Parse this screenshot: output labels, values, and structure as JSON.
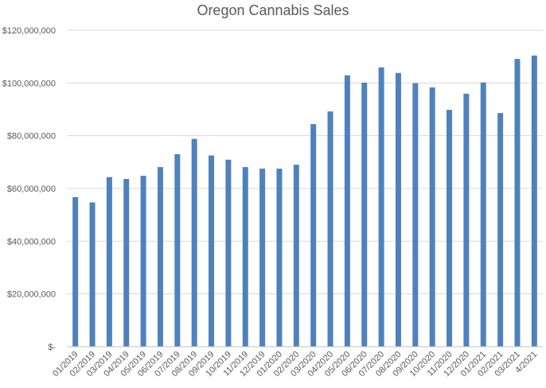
{
  "chart_data": {
    "type": "bar",
    "title": "Oregon Cannabis Sales",
    "xlabel": "",
    "ylabel": "",
    "ylim": [
      0,
      120000000
    ],
    "grid": true,
    "legend": "none",
    "bar_color": "#4f81bd",
    "grid_color": "#d9d9d9",
    "yticks": [
      {
        "value": 0,
        "label": "$-"
      },
      {
        "value": 20000000,
        "label": "$20,000,000"
      },
      {
        "value": 40000000,
        "label": "$40,000,000"
      },
      {
        "value": 60000000,
        "label": "$60,000,000"
      },
      {
        "value": 80000000,
        "label": "$80,000,000"
      },
      {
        "value": 100000000,
        "label": "$100,000,000"
      },
      {
        "value": 120000000,
        "label": "$120,000,000"
      }
    ],
    "categories": [
      "01/2019",
      "02/2019",
      "03/2019",
      "04/2019",
      "05/2019",
      "06/2019",
      "07/2019",
      "08/2019",
      "09/2019",
      "10/2019",
      "11/2019",
      "12/2019",
      "01/2020",
      "02/2020",
      "03/2020",
      "04/2020",
      "05/2020",
      "06/2020",
      "07/2020",
      "08/2020",
      "09/2020",
      "10/2020",
      "11/2020",
      "12/2020",
      "01/2021",
      "02/2021",
      "03/2021",
      "4/2021"
    ],
    "values": [
      56700000,
      54700000,
      64300000,
      63600000,
      64800000,
      68100000,
      73000000,
      78800000,
      72500000,
      70900000,
      68100000,
      67500000,
      67500000,
      69000000,
      84400000,
      89200000,
      102900000,
      100100000,
      105900000,
      103800000,
      99900000,
      98300000,
      89800000,
      95900000,
      100200000,
      88600000,
      109100000,
      110400000
    ]
  }
}
